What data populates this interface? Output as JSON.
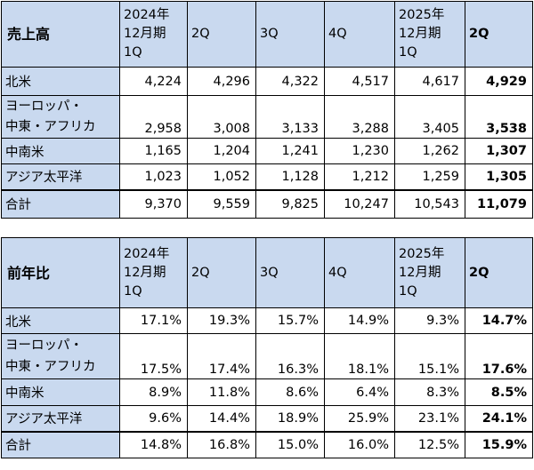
{
  "table1": {
    "title": "売上高",
    "headers": [
      "2024年 12月期 1Q",
      "2Q",
      "3Q",
      "4Q",
      "2025年 12月期 1Q",
      "2Q"
    ],
    "rows": [
      {
        "label": "北米",
        "values": [
          "4,224",
          "4,296",
          "4,322",
          "4,517",
          "4,617",
          "4,929"
        ]
      },
      {
        "label_line1": "ヨーロッパ・",
        "label_line2": "中東・アフリカ",
        "values": [
          "2,958",
          "3,008",
          "3,133",
          "3,288",
          "3,405",
          "3,538"
        ]
      },
      {
        "label": "中南米",
        "values": [
          "1,165",
          "1,204",
          "1,241",
          "1,230",
          "1,262",
          "1,307"
        ]
      },
      {
        "label": "アジア太平洋",
        "values": [
          "1,023",
          "1,052",
          "1,128",
          "1,212",
          "1,259",
          "1,305"
        ]
      }
    ],
    "total": {
      "label": "合計",
      "values": [
        "9,370",
        "9,559",
        "9,825",
        "10,247",
        "10,543",
        "11,079"
      ]
    }
  },
  "table2": {
    "title": "前年比",
    "headers": [
      "2024年 12月期 1Q",
      "2Q",
      "3Q",
      "4Q",
      "2025年 12月期 1Q",
      "2Q"
    ],
    "rows": [
      {
        "label": "北米",
        "values": [
          "17.1%",
          "19.3%",
          "15.7%",
          "14.9%",
          "9.3%",
          "14.7%"
        ]
      },
      {
        "label_line1": "ヨーロッパ・",
        "label_line2": "中東・アフリカ",
        "values": [
          "17.5%",
          "17.4%",
          "16.3%",
          "18.1%",
          "15.1%",
          "17.6%"
        ]
      },
      {
        "label": "中南米",
        "values": [
          "8.9%",
          "11.8%",
          "8.6%",
          "6.4%",
          "8.3%",
          "8.5%"
        ]
      },
      {
        "label": "アジア太平洋",
        "values": [
          "9.6%",
          "14.4%",
          "18.9%",
          "25.9%",
          "23.1%",
          "24.1%"
        ]
      }
    ],
    "total": {
      "label": "合計",
      "values": [
        "14.8%",
        "16.8%",
        "15.0%",
        "16.0%",
        "12.5%",
        "15.9%"
      ]
    }
  },
  "colors": {
    "label_bg": "#c9d9ef",
    "border": "#000000"
  }
}
